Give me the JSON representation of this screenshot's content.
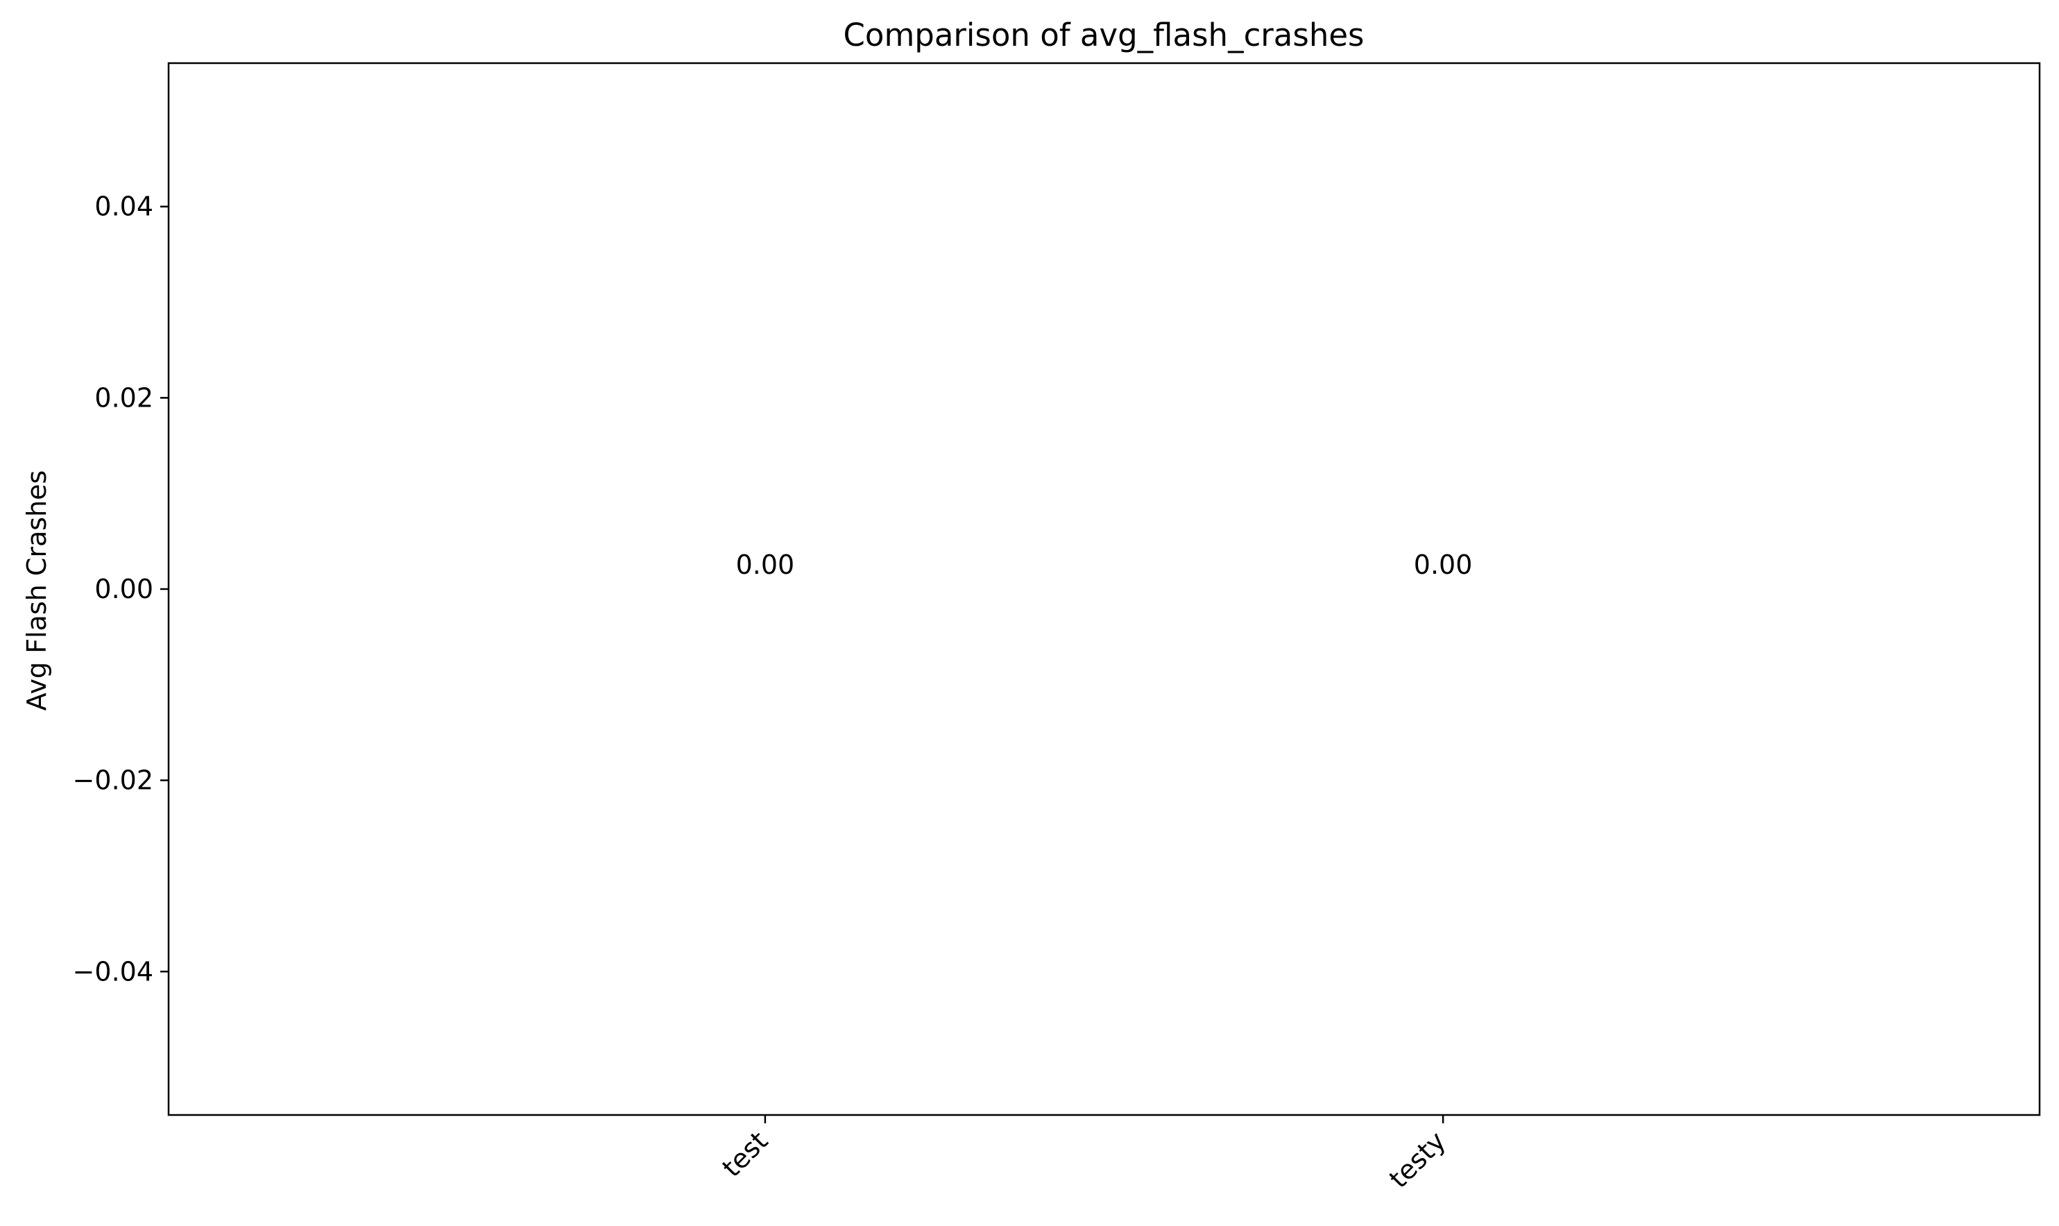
{
  "chart_data": {
    "type": "bar",
    "title": "Comparison of avg_flash_crashes",
    "xlabel": "",
    "ylabel": "Avg Flash Crashes",
    "categories": [
      "test",
      "testy"
    ],
    "values": [
      0.0,
      0.0
    ],
    "value_labels": [
      "0.00",
      "0.00"
    ],
    "ylim": [
      -0.055,
      0.055
    ],
    "y_ticks": [
      -0.04,
      -0.02,
      0.0,
      0.02,
      0.04
    ],
    "y_tick_labels": [
      "−0.04",
      "−0.02",
      "0.00",
      "0.02",
      "0.04"
    ],
    "x_tick_rotation_deg": 45,
    "grid": false,
    "legend": "none",
    "bar_color": "#1f77b4",
    "axis_color": "#000000"
  }
}
